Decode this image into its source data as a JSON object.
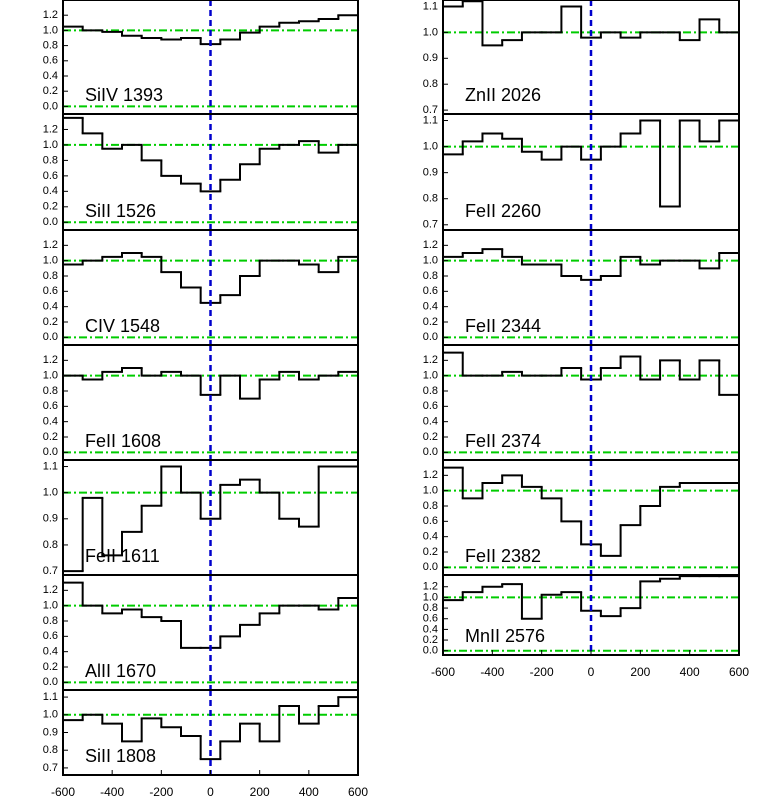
{
  "chart_data": [
    {
      "type": "step",
      "label": "SiIV 1393",
      "x": [
        -560,
        -480,
        -400,
        -320,
        -240,
        -160,
        -80,
        0,
        80,
        160,
        240,
        320,
        400,
        480,
        560
      ],
      "values": [
        1.05,
        1.0,
        0.98,
        0.93,
        0.9,
        0.88,
        0.9,
        0.82,
        0.88,
        0.97,
        1.05,
        1.1,
        1.12,
        1.15,
        1.2
      ],
      "xlim": [
        -600,
        600
      ],
      "ylim": [
        -0.1,
        1.4
      ],
      "yticks": [
        {
          "value": 0,
          "label": "0.0"
        },
        {
          "value": 0.2,
          "label": "0.2"
        },
        {
          "value": 0.4,
          "label": "0.4"
        },
        {
          "value": 0.6,
          "label": "0.6"
        },
        {
          "value": 0.8,
          "label": "0.8"
        },
        {
          "value": 1,
          "label": "1.0"
        },
        {
          "value": 1.2,
          "label": "1.2"
        }
      ],
      "vline": 0,
      "hlines": [
        0,
        1
      ],
      "color": "#000000",
      "vline_color": "#0000cc",
      "hline_color": "#00cc00"
    },
    {
      "type": "step",
      "label": "SiII 1526",
      "x": [
        -560,
        -480,
        -400,
        -320,
        -240,
        -160,
        -80,
        0,
        80,
        160,
        240,
        320,
        400,
        480,
        560
      ],
      "values": [
        1.35,
        1.15,
        0.95,
        1.0,
        0.8,
        0.6,
        0.5,
        0.4,
        0.55,
        0.75,
        0.95,
        1.0,
        1.05,
        0.9,
        1.0
      ],
      "xlim": [
        -600,
        600
      ],
      "ylim": [
        -0.1,
        1.4
      ],
      "yticks": [
        {
          "value": 0,
          "label": "0.0"
        },
        {
          "value": 0.2,
          "label": "0.2"
        },
        {
          "value": 0.4,
          "label": "0.4"
        },
        {
          "value": 0.6,
          "label": "0.6"
        },
        {
          "value": 0.8,
          "label": "0.8"
        },
        {
          "value": 1,
          "label": "1.0"
        },
        {
          "value": 1.2,
          "label": "1.2"
        }
      ],
      "vline": 0,
      "hlines": [
        0,
        1
      ],
      "color": "#000000",
      "vline_color": "#0000cc",
      "hline_color": "#00cc00"
    },
    {
      "type": "step",
      "label": "CIV 1548",
      "x": [
        -560,
        -480,
        -400,
        -320,
        -240,
        -160,
        -80,
        0,
        80,
        160,
        240,
        320,
        400,
        480,
        560
      ],
      "values": [
        0.95,
        1.0,
        1.05,
        1.1,
        1.05,
        0.85,
        0.65,
        0.45,
        0.55,
        0.8,
        1.0,
        1.0,
        0.95,
        0.85,
        1.05
      ],
      "xlim": [
        -600,
        600
      ],
      "ylim": [
        -0.1,
        1.4
      ],
      "yticks": [
        {
          "value": 0,
          "label": "0.0"
        },
        {
          "value": 0.2,
          "label": "0.2"
        },
        {
          "value": 0.4,
          "label": "0.4"
        },
        {
          "value": 0.6,
          "label": "0.6"
        },
        {
          "value": 0.8,
          "label": "0.8"
        },
        {
          "value": 1,
          "label": "1.0"
        },
        {
          "value": 1.2,
          "label": "1.2"
        }
      ],
      "vline": 0,
      "hlines": [
        0,
        1
      ],
      "color": "#000000",
      "vline_color": "#0000cc",
      "hline_color": "#00cc00"
    },
    {
      "type": "step",
      "label": "FeII 1608",
      "x": [
        -560,
        -480,
        -400,
        -320,
        -240,
        -160,
        -80,
        0,
        80,
        160,
        240,
        320,
        400,
        480,
        560
      ],
      "values": [
        1.0,
        0.95,
        1.05,
        1.1,
        1.0,
        1.05,
        1.0,
        0.75,
        1.0,
        0.7,
        0.95,
        1.05,
        0.95,
        1.0,
        1.05
      ],
      "xlim": [
        -600,
        600
      ],
      "ylim": [
        -0.1,
        1.4
      ],
      "yticks": [
        {
          "value": 0,
          "label": "0.0"
        },
        {
          "value": 0.2,
          "label": "0.2"
        },
        {
          "value": 0.4,
          "label": "0.4"
        },
        {
          "value": 0.6,
          "label": "0.6"
        },
        {
          "value": 0.8,
          "label": "0.8"
        },
        {
          "value": 1,
          "label": "1.0"
        },
        {
          "value": 1.2,
          "label": "1.2"
        }
      ],
      "vline": 0,
      "hlines": [
        0,
        1
      ],
      "color": "#000000",
      "vline_color": "#0000cc",
      "hline_color": "#00cc00"
    },
    {
      "type": "step",
      "label": "FeII 1611",
      "x": [
        -560,
        -480,
        -400,
        -320,
        -240,
        -160,
        -80,
        0,
        80,
        160,
        240,
        320,
        400,
        480,
        560
      ],
      "values": [
        0.7,
        0.98,
        0.76,
        0.85,
        0.95,
        1.1,
        1.0,
        0.9,
        1.03,
        1.05,
        1.0,
        0.9,
        0.87,
        1.1,
        1.1
      ],
      "xlim": [
        -600,
        600
      ],
      "ylim": [
        0.685,
        1.125
      ],
      "yticks": [
        0.7,
        0.8,
        0.9,
        {
          "value": 1,
          "label": "1.0"
        },
        1.1
      ],
      "vline": 0,
      "hlines": [
        1
      ],
      "color": "#000000",
      "vline_color": "#0000cc",
      "hline_color": "#00cc00"
    },
    {
      "type": "step",
      "label": "AlII 1670",
      "x": [
        -560,
        -480,
        -400,
        -320,
        -240,
        -160,
        -80,
        0,
        80,
        160,
        240,
        320,
        400,
        480,
        560
      ],
      "values": [
        1.3,
        1.0,
        0.9,
        0.95,
        0.85,
        0.8,
        0.45,
        0.45,
        0.6,
        0.75,
        0.9,
        1.0,
        1.0,
        0.95,
        1.1
      ],
      "xlim": [
        -600,
        600
      ],
      "ylim": [
        -0.1,
        1.4
      ],
      "yticks": [
        {
          "value": 0,
          "label": "0.0"
        },
        {
          "value": 0.2,
          "label": "0.2"
        },
        {
          "value": 0.4,
          "label": "0.4"
        },
        {
          "value": 0.6,
          "label": "0.6"
        },
        {
          "value": 0.8,
          "label": "0.8"
        },
        {
          "value": 1,
          "label": "1.0"
        },
        {
          "value": 1.2,
          "label": "1.2"
        }
      ],
      "vline": 0,
      "hlines": [
        0,
        1
      ],
      "color": "#000000",
      "vline_color": "#0000cc",
      "hline_color": "#00cc00"
    },
    {
      "type": "step",
      "label": "SiII 1808",
      "x": [
        -560,
        -480,
        -400,
        -320,
        -240,
        -160,
        -80,
        0,
        80,
        160,
        240,
        320,
        400,
        480,
        560
      ],
      "values": [
        0.97,
        1.0,
        0.95,
        0.85,
        0.98,
        0.93,
        0.88,
        0.75,
        0.85,
        0.95,
        0.85,
        1.05,
        0.95,
        1.05,
        1.1
      ],
      "xlim": [
        -600,
        600
      ],
      "ylim": [
        0.66,
        1.14
      ],
      "yticks": [
        0.7,
        0.8,
        0.9,
        {
          "value": 1,
          "label": "1.0"
        },
        1.1
      ],
      "xticks": [
        -600,
        -400,
        -200,
        0,
        200,
        400,
        600
      ],
      "vline": 0,
      "hlines": [
        1
      ],
      "color": "#000000",
      "vline_color": "#0000cc",
      "hline_color": "#00cc00"
    },
    {
      "type": "step",
      "label": "ZnII 2026",
      "x": [
        -560,
        -480,
        -400,
        -320,
        -240,
        -160,
        -80,
        0,
        80,
        160,
        240,
        320,
        400,
        480,
        560
      ],
      "values": [
        1.1,
        1.12,
        0.95,
        0.97,
        1.0,
        1.0,
        1.1,
        0.98,
        1.0,
        0.98,
        1.0,
        1.0,
        0.97,
        1.05,
        1.0
      ],
      "xlim": [
        -600,
        600
      ],
      "ylim": [
        0.685,
        1.125
      ],
      "yticks": [
        0.7,
        0.8,
        0.9,
        {
          "value": 1,
          "label": "1.0"
        },
        1.1
      ],
      "vline": 0,
      "hlines": [
        1
      ],
      "color": "#000000",
      "vline_color": "#0000cc",
      "hline_color": "#00cc00"
    },
    {
      "type": "step",
      "label": "FeII 2260",
      "x": [
        -560,
        -480,
        -400,
        -320,
        -240,
        -160,
        -80,
        0,
        80,
        160,
        240,
        320,
        400,
        480,
        560
      ],
      "values": [
        0.97,
        1.02,
        1.05,
        1.03,
        0.98,
        0.95,
        1.0,
        0.95,
        1.0,
        1.05,
        1.1,
        0.77,
        1.1,
        1.02,
        1.1
      ],
      "xlim": [
        -600,
        600
      ],
      "ylim": [
        0.68,
        1.125
      ],
      "yticks": [
        0.7,
        0.8,
        0.9,
        {
          "value": 1,
          "label": "1.0"
        },
        1.1
      ],
      "vline": 0,
      "hlines": [
        1
      ],
      "color": "#000000",
      "vline_color": "#0000cc",
      "hline_color": "#00cc00"
    },
    {
      "type": "step",
      "label": "FeII 2344",
      "x": [
        -560,
        -480,
        -400,
        -320,
        -240,
        -160,
        -80,
        0,
        80,
        160,
        240,
        320,
        400,
        480,
        560
      ],
      "values": [
        1.05,
        1.1,
        1.15,
        1.05,
        0.95,
        0.95,
        0.8,
        0.75,
        0.8,
        1.05,
        0.95,
        1.0,
        1.0,
        0.9,
        1.1
      ],
      "xlim": [
        -600,
        600
      ],
      "ylim": [
        -0.1,
        1.4
      ],
      "yticks": [
        {
          "value": 0,
          "label": "0.0"
        },
        {
          "value": 0.2,
          "label": "0.2"
        },
        {
          "value": 0.4,
          "label": "0.4"
        },
        {
          "value": 0.6,
          "label": "0.6"
        },
        {
          "value": 0.8,
          "label": "0.8"
        },
        {
          "value": 1,
          "label": "1.0"
        },
        {
          "value": 1.2,
          "label": "1.2"
        }
      ],
      "vline": 0,
      "hlines": [
        0,
        1
      ],
      "color": "#000000",
      "vline_color": "#0000cc",
      "hline_color": "#00cc00"
    },
    {
      "type": "step",
      "label": "FeII 2374",
      "x": [
        -560,
        -480,
        -400,
        -320,
        -240,
        -160,
        -80,
        0,
        80,
        160,
        240,
        320,
        400,
        480,
        560
      ],
      "values": [
        1.3,
        1.0,
        1.0,
        1.05,
        1.0,
        1.0,
        1.1,
        0.95,
        1.1,
        1.25,
        0.95,
        1.2,
        0.95,
        1.2,
        0.75
      ],
      "xlim": [
        -600,
        600
      ],
      "ylim": [
        -0.1,
        1.4
      ],
      "yticks": [
        {
          "value": 0,
          "label": "0.0"
        },
        {
          "value": 0.2,
          "label": "0.2"
        },
        {
          "value": 0.4,
          "label": "0.4"
        },
        {
          "value": 0.6,
          "label": "0.6"
        },
        {
          "value": 0.8,
          "label": "0.8"
        },
        {
          "value": 1,
          "label": "1.0"
        },
        {
          "value": 1.2,
          "label": "1.2"
        }
      ],
      "vline": 0,
      "hlines": [
        0,
        1
      ],
      "color": "#000000",
      "vline_color": "#0000cc",
      "hline_color": "#00cc00"
    },
    {
      "type": "step",
      "label": "FeII 2382",
      "x": [
        -560,
        -480,
        -400,
        -320,
        -240,
        -160,
        -80,
        0,
        80,
        160,
        240,
        320,
        400,
        480,
        560
      ],
      "values": [
        1.3,
        0.9,
        1.1,
        1.2,
        1.05,
        0.9,
        0.6,
        0.3,
        0.15,
        0.55,
        0.8,
        1.05,
        1.1,
        1.1,
        1.1
      ],
      "xlim": [
        -600,
        600
      ],
      "ylim": [
        -0.1,
        1.4
      ],
      "yticks": [
        {
          "value": 0,
          "label": "0.0"
        },
        {
          "value": 0.2,
          "label": "0.2"
        },
        {
          "value": 0.4,
          "label": "0.4"
        },
        {
          "value": 0.6,
          "label": "0.6"
        },
        {
          "value": 0.8,
          "label": "0.8"
        },
        {
          "value": 1,
          "label": "1.0"
        },
        {
          "value": 1.2,
          "label": "1.2"
        }
      ],
      "vline": 0,
      "hlines": [
        0,
        1
      ],
      "color": "#000000",
      "vline_color": "#0000cc",
      "hline_color": "#00cc00"
    },
    {
      "type": "step",
      "label": "MnII 2576",
      "x": [
        -560,
        -480,
        -400,
        -320,
        -240,
        -160,
        -80,
        0,
        80,
        160,
        240,
        320,
        400,
        480,
        560
      ],
      "values": [
        0.95,
        1.1,
        1.2,
        1.25,
        0.6,
        1.05,
        1.1,
        0.75,
        0.65,
        0.8,
        1.3,
        1.35,
        1.4,
        1.4,
        1.4
      ],
      "xlim": [
        -600,
        600
      ],
      "ylim": [
        -0.08,
        1.42
      ],
      "yticks": [
        {
          "value": 0,
          "label": "0.0"
        },
        {
          "value": 0.2,
          "label": "0.2"
        },
        {
          "value": 0.4,
          "label": "0.4"
        },
        {
          "value": 0.6,
          "label": "0.6"
        },
        {
          "value": 0.8,
          "label": "0.8"
        },
        {
          "value": 1,
          "label": "1.0"
        },
        {
          "value": 1.2,
          "label": "1.2"
        }
      ],
      "xticks": [
        -600,
        -400,
        -200,
        0,
        200,
        400,
        600
      ],
      "vline": 0,
      "hlines": [
        0,
        1
      ],
      "color": "#000000",
      "vline_color": "#0000cc",
      "hline_color": "#00cc00"
    }
  ]
}
